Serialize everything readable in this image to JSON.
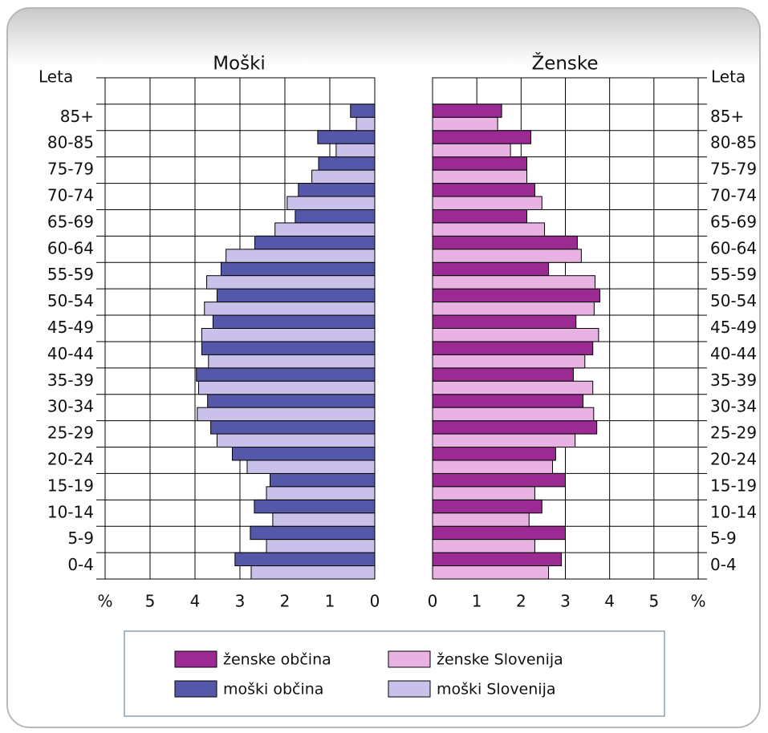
{
  "chart_data": {
    "type": "pyramid",
    "left_title": "Moški",
    "right_title": "Ženske",
    "y_label": "Leta",
    "categories": [
      "0-4",
      "5-9",
      "10-14",
      "15-19",
      "20-24",
      "25-29",
      "30-34",
      "35-39",
      "40-44",
      "45-49",
      "50-54",
      "55-59",
      "60-64",
      "65-69",
      "70-74",
      "75-79",
      "80-85",
      "85+"
    ],
    "series": [
      {
        "name": "ženske občina",
        "color": "#9b2a93",
        "side": "right",
        "values": [
          2.91,
          3.0,
          2.47,
          3.0,
          2.78,
          3.71,
          3.4,
          3.18,
          3.62,
          3.24,
          3.78,
          2.62,
          3.27,
          2.13,
          2.31,
          2.13,
          2.22,
          1.56
        ]
      },
      {
        "name": "ženske Slovenija",
        "color": "#e8b2e2",
        "side": "right",
        "values": [
          2.62,
          2.31,
          2.18,
          2.31,
          2.71,
          3.22,
          3.64,
          3.62,
          3.44,
          3.75,
          3.65,
          3.67,
          3.36,
          2.53,
          2.47,
          2.13,
          1.76,
          1.47
        ]
      },
      {
        "name": "moški občina",
        "color": "#5558a8",
        "side": "left",
        "values": [
          3.11,
          2.77,
          2.68,
          2.33,
          3.17,
          3.65,
          3.72,
          3.97,
          3.85,
          3.6,
          3.51,
          3.42,
          2.67,
          1.77,
          1.7,
          1.25,
          1.27,
          0.54
        ]
      },
      {
        "name": "moški Slovenija",
        "color": "#cac1ea",
        "side": "left",
        "values": [
          2.75,
          2.41,
          2.27,
          2.41,
          2.84,
          3.51,
          3.95,
          3.92,
          3.7,
          3.85,
          3.79,
          3.74,
          3.31,
          2.22,
          1.95,
          1.4,
          0.86,
          0.41
        ]
      }
    ],
    "xlim": [
      0,
      6
    ],
    "xticks": [
      0,
      1,
      2,
      3,
      4,
      5,
      {
        "value": 6,
        "label": "%"
      }
    ],
    "grid": true
  }
}
